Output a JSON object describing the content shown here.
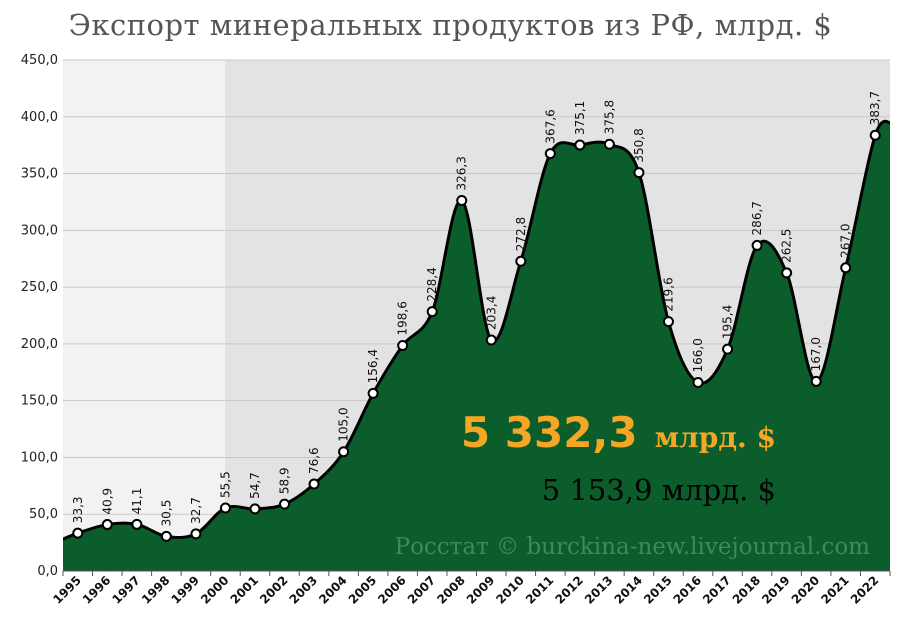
{
  "chart_title": "Экспорт минеральных продуктов из РФ, млрд. $",
  "totals": {
    "primary_value": "5 332,3",
    "primary_unit": "млрд. $",
    "secondary": "5 153,9 млрд. $"
  },
  "credit": "Росстат © burckina-new.livejournal.com",
  "colors": {
    "area": "#0b5e2c",
    "line": "#000000",
    "accent": "#f5a623",
    "bg_light": "#f2f2f2",
    "bg_dark": "#e3e3e3"
  },
  "chart_data": {
    "type": "area",
    "title": "Экспорт минеральных продуктов из РФ, млрд. $",
    "x": [
      "1995",
      "1996",
      "1997",
      "1998",
      "1999",
      "2000",
      "2001",
      "2002",
      "2003",
      "2004",
      "2005",
      "2006",
      "2007",
      "2008",
      "2009",
      "2010",
      "2011",
      "2012",
      "2013",
      "2014",
      "2015",
      "2016",
      "2017",
      "2018",
      "2019",
      "2020",
      "2021",
      "2022"
    ],
    "values": [
      33.3,
      40.9,
      41.1,
      30.5,
      32.7,
      55.5,
      54.7,
      58.9,
      76.6,
      105.0,
      156.4,
      198.6,
      228.4,
      326.3,
      203.4,
      272.8,
      367.6,
      375.1,
      375.8,
      350.8,
      219.6,
      166.0,
      195.4,
      286.7,
      262.5,
      167.0,
      267.0,
      383.7
    ],
    "data_labels": [
      "33,3",
      "40,9",
      "41,1",
      "30,5",
      "32,7",
      "55,5",
      "54,7",
      "58,9",
      "76,6",
      "105,0",
      "156,4",
      "198,6",
      "228,4",
      "326,3",
      "203,4",
      "272,8",
      "367,6",
      "375,1",
      "375,8",
      "350,8",
      "219,6",
      "166,0",
      "195,4",
      "286,7",
      "262,5",
      "167,0",
      "267,0",
      "383,7"
    ],
    "y_ticks": [
      "0,0",
      "50,0",
      "100,0",
      "150,0",
      "200,0",
      "250,0",
      "300,0",
      "350,0",
      "400,0",
      "450,0"
    ],
    "y_tick_values": [
      0,
      50,
      100,
      150,
      200,
      250,
      300,
      350,
      400,
      450
    ],
    "ylim": [
      0,
      450
    ],
    "grid": true,
    "legend": "none"
  }
}
